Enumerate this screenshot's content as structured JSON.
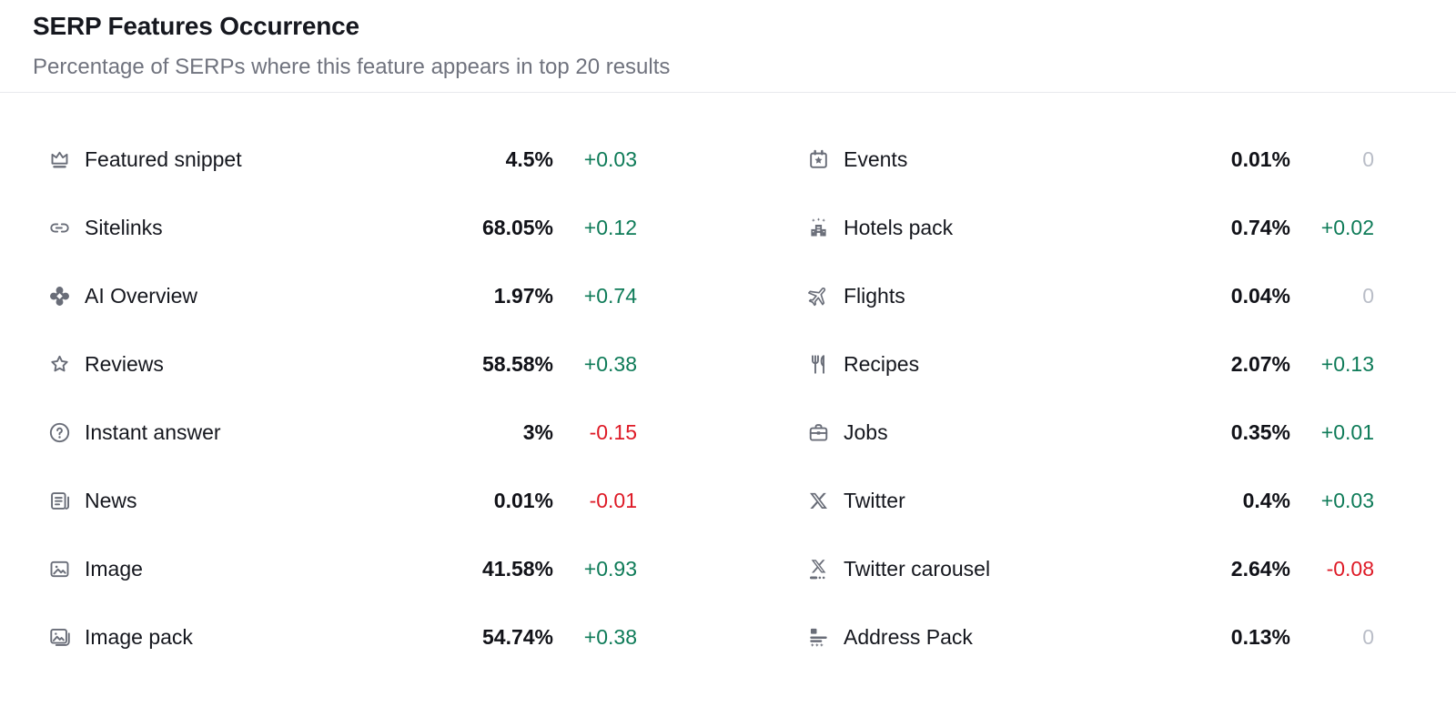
{
  "header": {
    "title": "SERP Features Occurrence",
    "subtitle": "Percentage of SERPs where this feature appears in top 20 results"
  },
  "colors": {
    "positive": "#0e7b58",
    "negative": "#de1a26",
    "neutral": "#b9bdc7",
    "icon_gray": "#696d78"
  },
  "features": {
    "left": [
      {
        "icon": "crown-icon",
        "label": "Featured snippet",
        "value": "4.5%",
        "change": "+0.03",
        "trend": "up"
      },
      {
        "icon": "sitelinks-icon",
        "label": "Sitelinks",
        "value": "68.05%",
        "change": "+0.12",
        "trend": "up"
      },
      {
        "icon": "ai-overview-icon",
        "label": "AI Overview",
        "value": "1.97%",
        "change": "+0.74",
        "trend": "up"
      },
      {
        "icon": "star-icon",
        "label": "Reviews",
        "value": "58.58%",
        "change": "+0.38",
        "trend": "up"
      },
      {
        "icon": "question-circle-icon",
        "label": "Instant answer",
        "value": "3%",
        "change": "-0.15",
        "trend": "down"
      },
      {
        "icon": "news-icon",
        "label": "News",
        "value": "0.01%",
        "change": "-0.01",
        "trend": "down"
      },
      {
        "icon": "image-icon",
        "label": "Image",
        "value": "41.58%",
        "change": "+0.93",
        "trend": "up"
      },
      {
        "icon": "image-pack-icon",
        "label": "Image pack",
        "value": "54.74%",
        "change": "+0.38",
        "trend": "up"
      }
    ],
    "right": [
      {
        "icon": "events-calendar-icon",
        "label": "Events",
        "value": "0.01%",
        "change": "0",
        "trend": "flat"
      },
      {
        "icon": "hotels-pack-icon",
        "label": "Hotels pack",
        "value": "0.74%",
        "change": "+0.02",
        "trend": "up"
      },
      {
        "icon": "flights-icon",
        "label": "Flights",
        "value": "0.04%",
        "change": "0",
        "trend": "flat"
      },
      {
        "icon": "recipes-icon",
        "label": "Recipes",
        "value": "2.07%",
        "change": "+0.13",
        "trend": "up"
      },
      {
        "icon": "jobs-icon",
        "label": "Jobs",
        "value": "0.35%",
        "change": "+0.01",
        "trend": "up"
      },
      {
        "icon": "twitter-icon",
        "label": "Twitter",
        "value": "0.4%",
        "change": "+0.03",
        "trend": "up"
      },
      {
        "icon": "twitter-carousel-icon",
        "label": "Twitter carousel",
        "value": "2.64%",
        "change": "-0.08",
        "trend": "down"
      },
      {
        "icon": "address-pack-icon",
        "label": "Address Pack",
        "value": "0.13%",
        "change": "0",
        "trend": "flat"
      }
    ]
  }
}
